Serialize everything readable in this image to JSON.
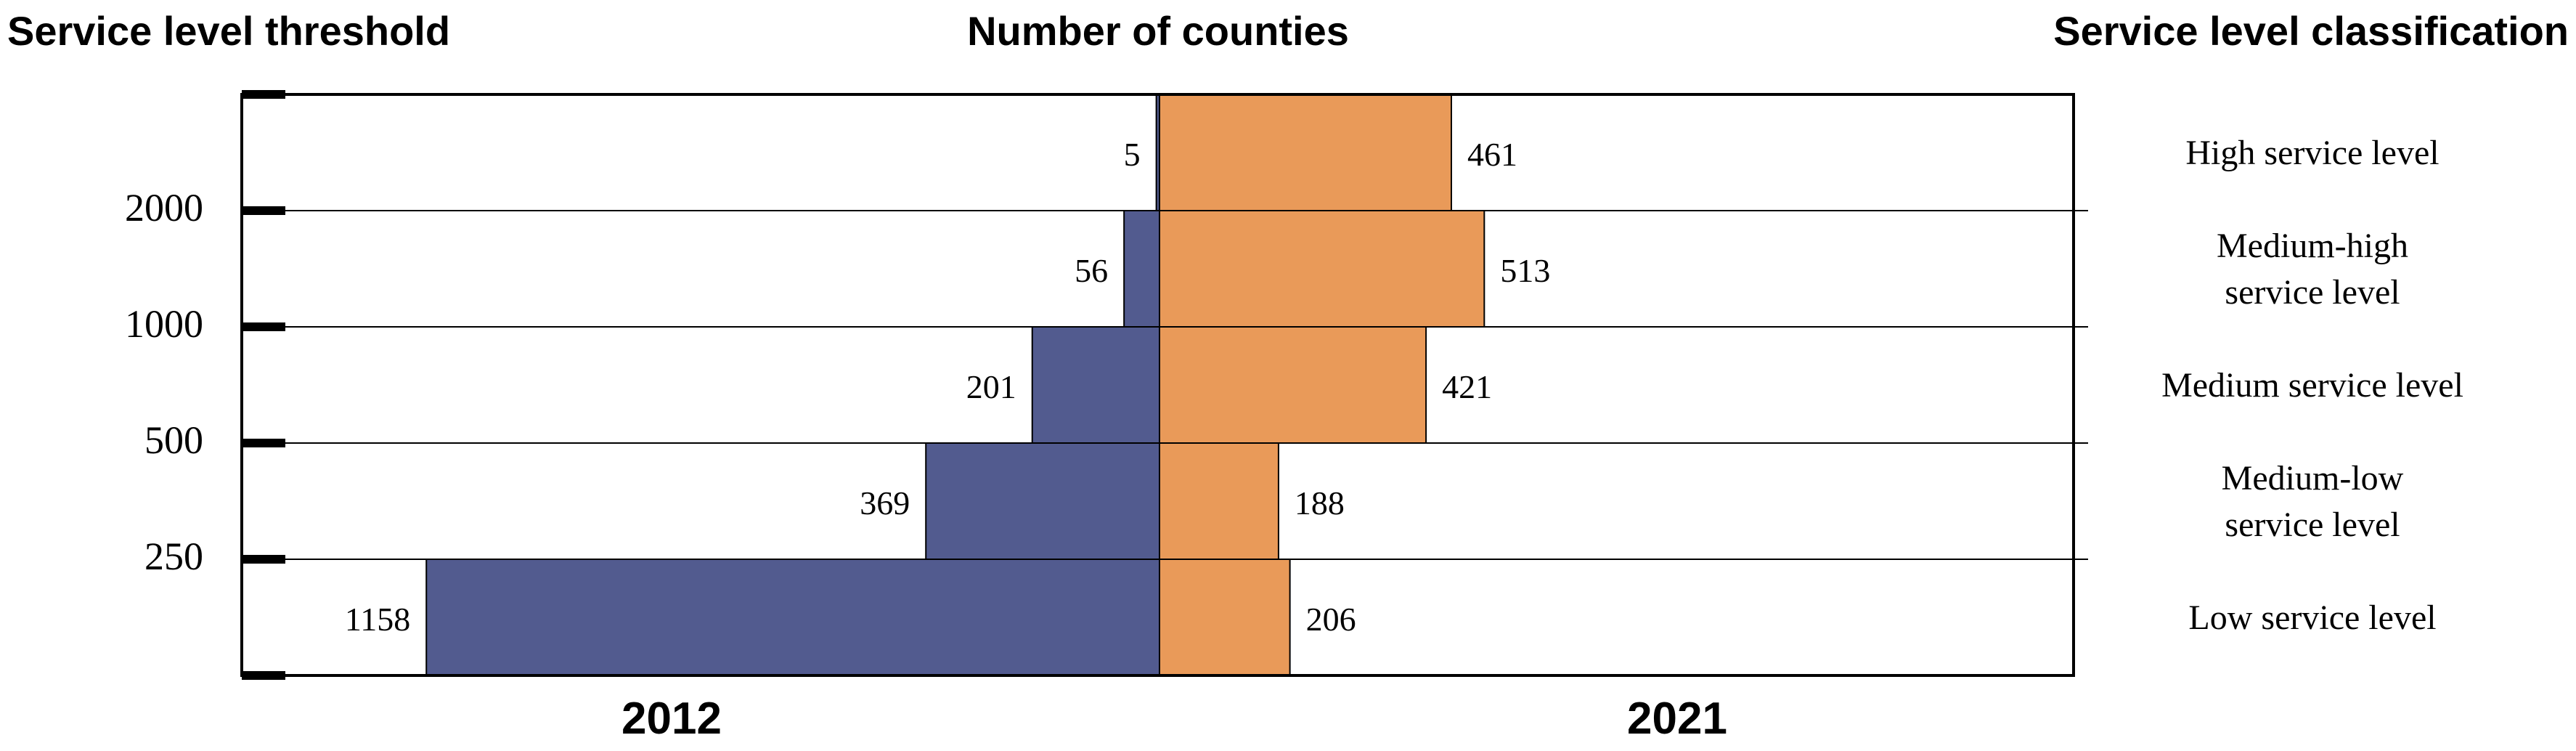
{
  "headers": {
    "left": "Service level threshold",
    "center": "Number of counties",
    "right": "Service level classification"
  },
  "chart_data": {
    "type": "bar",
    "orientation": "horizontal-diverging",
    "categories": [
      "High service level",
      "Medium-high service level",
      "Medium service level",
      "Medium-low service level",
      "Low service level"
    ],
    "category_lines": [
      [
        "High service level"
      ],
      [
        "Medium-high",
        "service level"
      ],
      [
        "Medium service level"
      ],
      [
        "Medium-low",
        "service level"
      ],
      [
        "Low service level"
      ]
    ],
    "thresholds": [
      "2000",
      "1000",
      "500",
      "250"
    ],
    "series": [
      {
        "name": "2012",
        "values": [
          5,
          56,
          201,
          369,
          1158
        ],
        "color": "#525b8f",
        "side": "left"
      },
      {
        "name": "2021",
        "values": [
          461,
          513,
          421,
          188,
          206
        ],
        "color": "#e99a59",
        "side": "right"
      }
    ],
    "value_labels": {
      "2012": [
        "5",
        "56",
        "201",
        "369",
        "1158"
      ],
      "2021": [
        "461",
        "513",
        "421",
        "188",
        "206"
      ]
    },
    "xlim": [
      0,
      1250
    ]
  }
}
